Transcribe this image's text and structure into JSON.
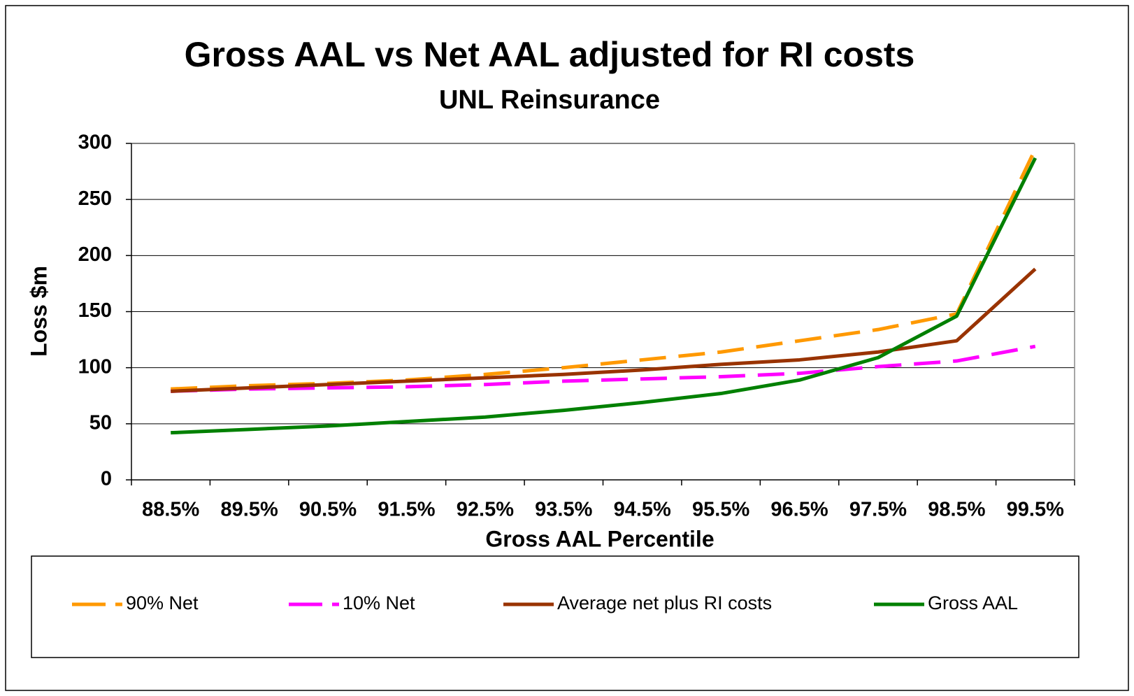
{
  "chart_data": {
    "type": "line",
    "title": "Gross AAL vs Net AAL adjusted for RI costs",
    "subtitle": "UNL Reinsurance",
    "x_label": "Gross AAL Percentile",
    "y_label": "Loss $m",
    "categories": [
      "88.5%",
      "89.5%",
      "90.5%",
      "91.5%",
      "92.5%",
      "93.5%",
      "94.5%",
      "95.5%",
      "96.5%",
      "97.5%",
      "98.5%",
      "99.5%"
    ],
    "series": [
      {
        "name": "90% Net",
        "color": "#ff9900",
        "dashed": true,
        "values": [
          81,
          84,
          86,
          89,
          94,
          100,
          107,
          114,
          124,
          134,
          148,
          295
        ]
      },
      {
        "name": "10% Net",
        "color": "#ff00ff",
        "dashed": true,
        "values": [
          79,
          81,
          82,
          83,
          85,
          88,
          90,
          92,
          95,
          101,
          106,
          119
        ]
      },
      {
        "name": "Average net plus RI costs",
        "color": "#993300",
        "dashed": false,
        "values": [
          79,
          82,
          85,
          88,
          91,
          94,
          98,
          103,
          107,
          114,
          124,
          188
        ]
      },
      {
        "name": "Gross AAL",
        "color": "#008000",
        "dashed": false,
        "values": [
          42,
          45,
          48,
          52,
          56,
          62,
          69,
          77,
          89,
          109,
          146,
          287
        ]
      }
    ],
    "ylim": [
      0,
      300
    ],
    "yticks": [
      0,
      50,
      100,
      150,
      200,
      250,
      300
    ],
    "grid": true,
    "legend": "bottom"
  }
}
